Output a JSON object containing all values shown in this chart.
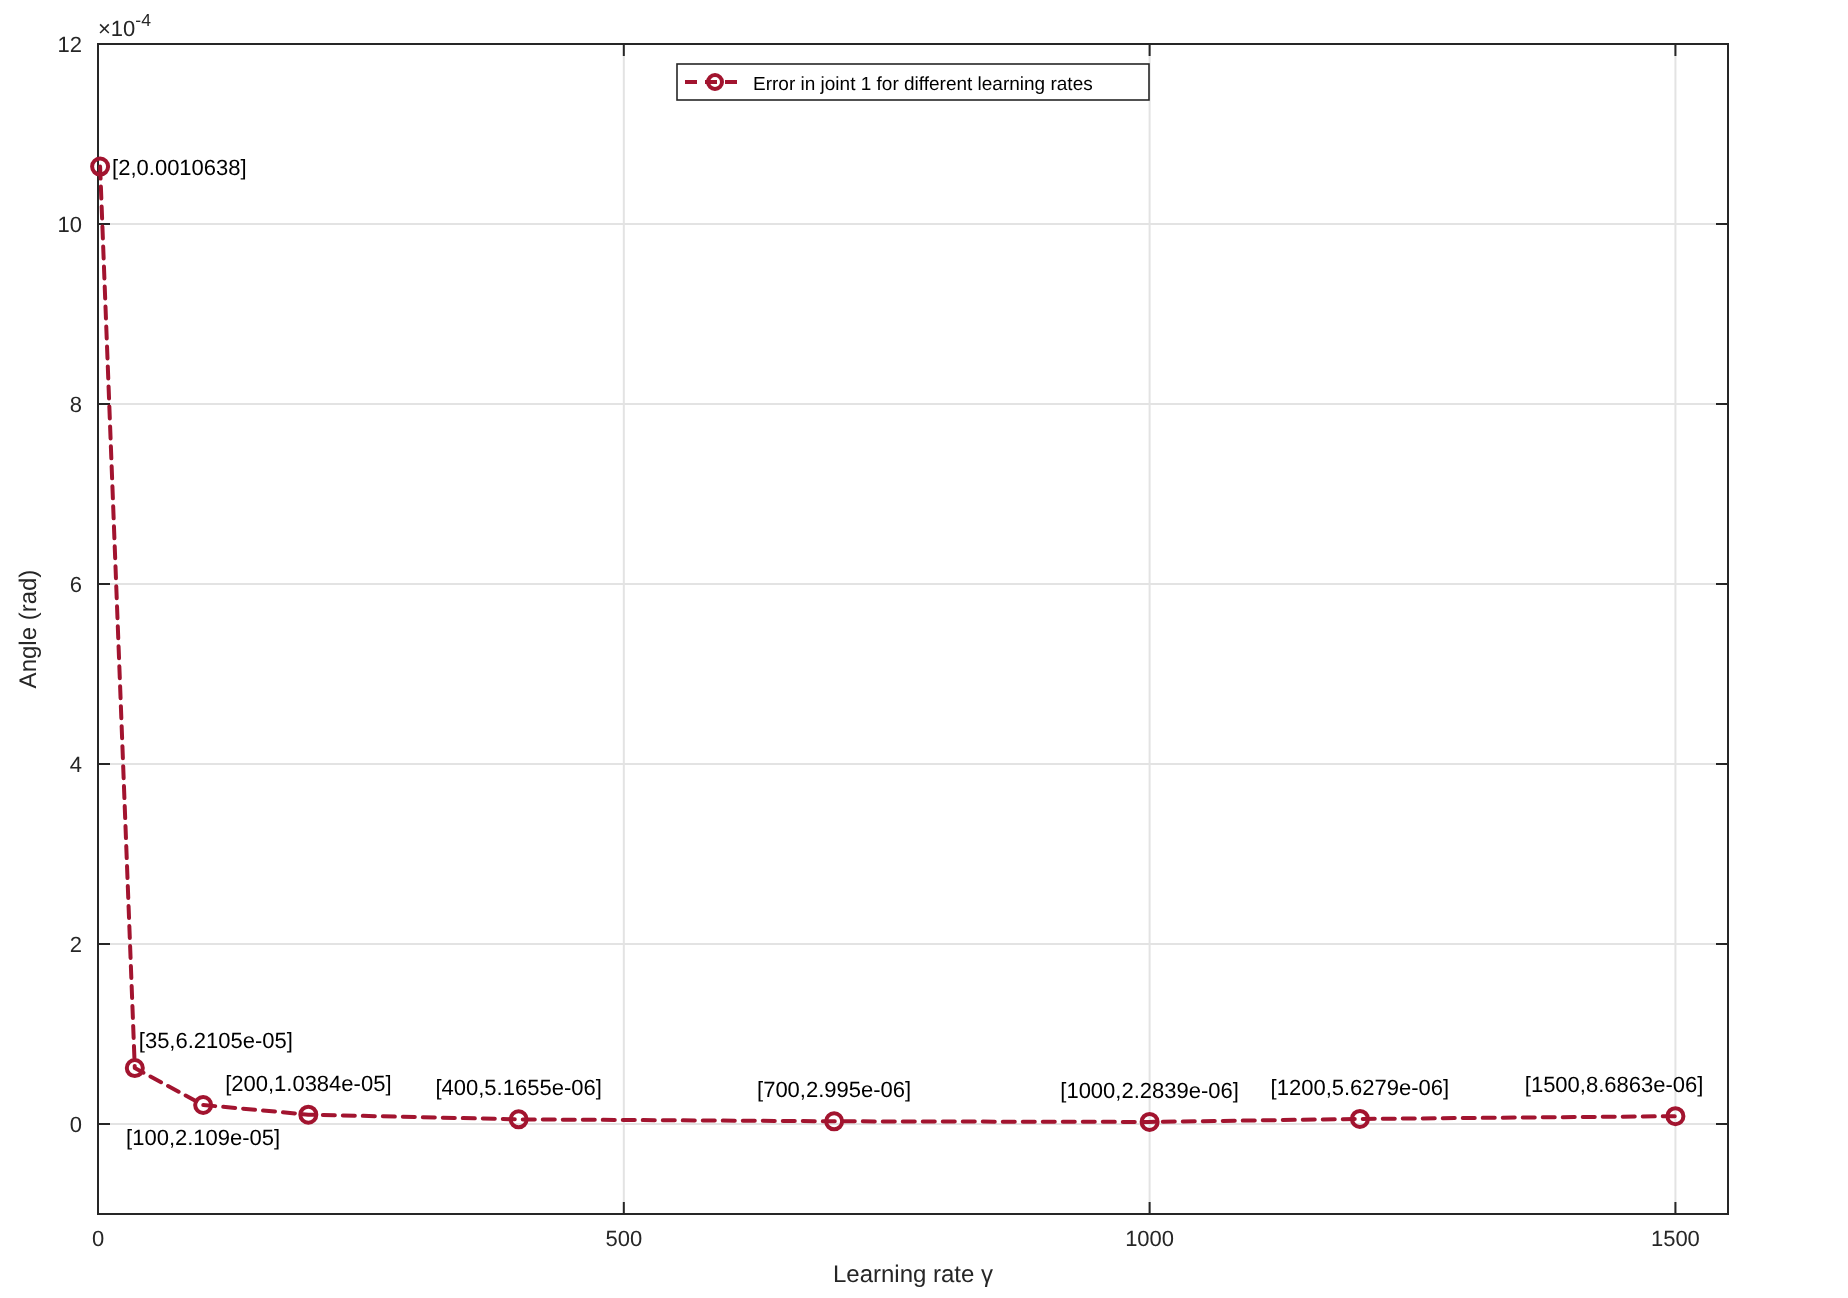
{
  "chart_data": {
    "type": "line",
    "xlabel": "Learning rate γ",
    "ylabel": "Angle (rad)",
    "annotations": [
      "×10$^{-4}$"
    ],
    "x": [
      2,
      35,
      100,
      200,
      400,
      700,
      1000,
      1200,
      1500
    ],
    "series": [
      {
        "name": "Error in joint 1 for different learning rates",
        "color": "#a2142f",
        "values": [
          10.638,
          0.62105,
          0.2109,
          0.10384,
          0.051655,
          0.02995,
          0.022839,
          0.056279,
          0.086863
        ],
        "value_labels": [
          "[2,0.0010638]",
          "[35,6.2105e-05]",
          "[100,2.109e-05]",
          "[200,1.0384e-05]",
          "[400,5.1655e-06]",
          "[700,2.995e-06]",
          "[1000,2.2839e-06]",
          "[1200,5.6279e-06]",
          "[1500,8.6863e-06]"
        ]
      }
    ],
    "xlim": [
      0,
      1550
    ],
    "xticks": [
      0,
      500,
      1000,
      1500
    ],
    "ylim": [
      -1,
      12
    ],
    "yticks": [
      0,
      2,
      4,
      6,
      8,
      10,
      12
    ],
    "grid": true,
    "legend": "top",
    "marker": "circle",
    "line_style": "dashed"
  }
}
